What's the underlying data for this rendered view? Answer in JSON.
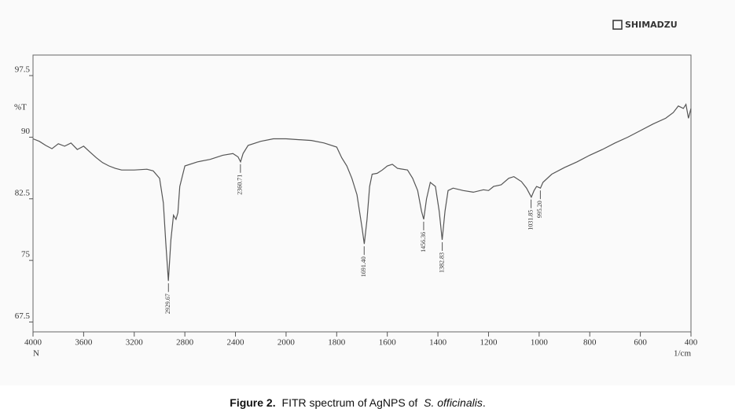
{
  "brand": "SHIMADZU",
  "chart_data": {
    "type": "line",
    "ylabel": "%T",
    "xlabel": "1/cm",
    "xlabel_left": "N",
    "xlim": [
      4000,
      400
    ],
    "xticks": [
      4000,
      3600,
      3200,
      2800,
      2400,
      2000,
      1800,
      1600,
      1400,
      1200,
      1000,
      800,
      600,
      400
    ],
    "ylim": [
      66.3,
      100
    ],
    "yticks": [
      67.5,
      75,
      82.5,
      90,
      97.5
    ],
    "x": [
      4000,
      3950,
      3900,
      3850,
      3800,
      3750,
      3700,
      3650,
      3600,
      3550,
      3500,
      3450,
      3400,
      3350,
      3300,
      3200,
      3100,
      3050,
      3000,
      2970,
      2950,
      2930,
      2910,
      2890,
      2870,
      2855,
      2840,
      2800,
      2700,
      2600,
      2500,
      2420,
      2380,
      2360,
      2340,
      2300,
      2200,
      2100,
      2000,
      1950,
      1900,
      1850,
      1800,
      1780,
      1760,
      1740,
      1720,
      1700,
      1691,
      1680,
      1670,
      1660,
      1640,
      1620,
      1600,
      1580,
      1560,
      1520,
      1500,
      1480,
      1465,
      1456,
      1445,
      1430,
      1410,
      1395,
      1383,
      1372,
      1360,
      1340,
      1300,
      1260,
      1220,
      1200,
      1180,
      1150,
      1120,
      1100,
      1070,
      1050,
      1031,
      1020,
      1010,
      995,
      985,
      950,
      900,
      850,
      800,
      750,
      700,
      650,
      600,
      550,
      500,
      470,
      450,
      430,
      420,
      410,
      400
    ],
    "series": [
      {
        "color": "#555555",
        "values": [
          89.8,
          89.5,
          89.0,
          88.6,
          89.2,
          88.9,
          89.3,
          88.5,
          88.9,
          88.2,
          87.5,
          86.9,
          86.5,
          86.2,
          86.0,
          86.0,
          86.1,
          85.9,
          85.0,
          82.0,
          77.0,
          72.5,
          77.5,
          80.5,
          80.0,
          80.8,
          84.0,
          86.5,
          87.0,
          87.3,
          87.8,
          88.0,
          87.6,
          87.0,
          88.0,
          89.0,
          89.5,
          89.8,
          89.8,
          89.7,
          89.6,
          89.3,
          88.8,
          87.5,
          86.5,
          85.0,
          83.0,
          79.0,
          77.0,
          80.0,
          84.0,
          85.5,
          85.6,
          86.0,
          86.5,
          86.7,
          86.2,
          86.0,
          85.0,
          83.5,
          81.0,
          80.0,
          82.5,
          84.5,
          84.0,
          81.0,
          77.5,
          81.0,
          83.5,
          83.8,
          83.5,
          83.3,
          83.6,
          83.5,
          84.0,
          84.2,
          85.0,
          85.2,
          84.6,
          83.8,
          82.7,
          83.5,
          84.0,
          83.8,
          84.5,
          85.5,
          86.3,
          87.0,
          87.8,
          88.5,
          89.3,
          90.0,
          90.8,
          91.6,
          92.3,
          93.0,
          93.8,
          93.5,
          94.0,
          92.3,
          93.5
        ]
      }
    ],
    "annotations": [
      {
        "label": "2929.67",
        "x": 2929.67,
        "y": 72.5
      },
      {
        "label": "2360.71",
        "x": 2360.71,
        "y": 87.0
      },
      {
        "label": "1691.40",
        "x": 1691.4,
        "y": 77.0
      },
      {
        "label": "1456.36",
        "x": 1456.36,
        "y": 80.0
      },
      {
        "label": "1382.83",
        "x": 1382.83,
        "y": 77.5
      },
      {
        "label": "1031.85",
        "x": 1031.85,
        "y": 82.7
      },
      {
        "label": "995.20",
        "x": 995.2,
        "y": 83.8
      }
    ]
  },
  "caption": [
    "Figure 2.",
    "FITR spectrum of AgNPS of",
    "S. officinalis",
    "."
  ]
}
